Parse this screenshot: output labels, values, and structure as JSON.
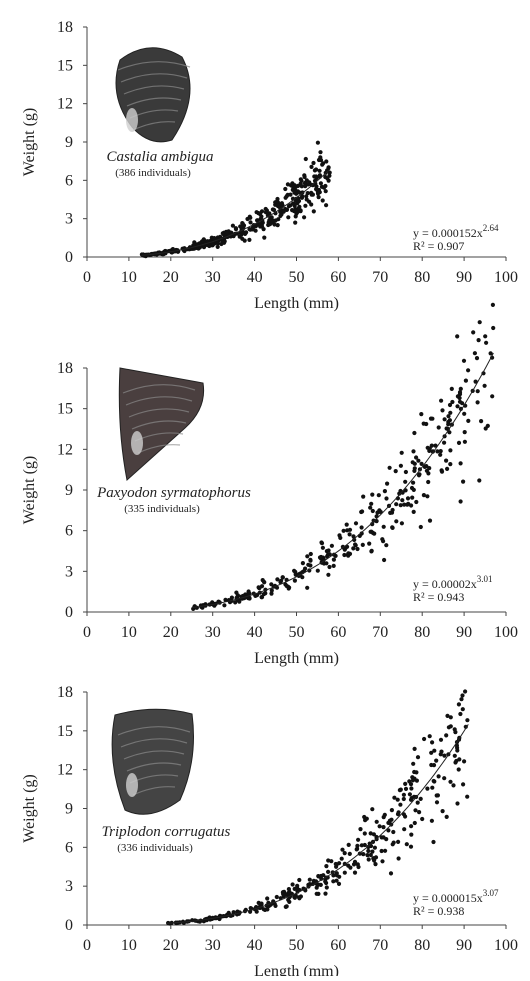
{
  "chart_data": [
    {
      "type": "scatter",
      "species": "Castalia ambigua",
      "count_label": "(386 individuals)",
      "xlabel": "Length (mm)",
      "ylabel": "Weight (g)",
      "xlim": [
        0,
        100
      ],
      "ylim": [
        0,
        18
      ],
      "xticks": [
        "0",
        "10",
        "20",
        "30",
        "40",
        "50",
        "60",
        "70",
        "80",
        "90",
        "100"
      ],
      "yticks": [
        "0",
        "3",
        "6",
        "9",
        "12",
        "15",
        "18"
      ],
      "fit": {
        "a": 0.000152,
        "b": 2.64,
        "x_range": [
          13,
          58
        ]
      },
      "equation": {
        "base": "y = 0.000152x",
        "exponent": "2.64",
        "r2": "R² = 0.907"
      },
      "x_range": [
        13,
        58
      ],
      "n_points": 386,
      "grid": false,
      "shell_color": "#3a3a3a"
    },
    {
      "type": "scatter",
      "species": "Paxyodon syrmatophorus",
      "count_label": "(335 individuals)",
      "xlabel": "Length (mm)",
      "ylabel": "Weight (g)",
      "xlim": [
        0,
        100
      ],
      "ylim": [
        0,
        18
      ],
      "xticks": [
        "0",
        "10",
        "20",
        "30",
        "40",
        "50",
        "60",
        "70",
        "80",
        "90",
        "100"
      ],
      "yticks": [
        "0",
        "3",
        "6",
        "9",
        "12",
        "15",
        "18"
      ],
      "fit": {
        "a": 2e-05,
        "b": 3.01,
        "x_range": [
          25,
          97
        ]
      },
      "equation": {
        "base": "y = 0.00002x",
        "exponent": "3.01",
        "r2": "R² = 0.943"
      },
      "x_range": [
        25,
        97
      ],
      "n_points": 335,
      "grid": false,
      "shell_color": "#4a3f3f"
    },
    {
      "type": "scatter",
      "species": "Triplodon corrugatus",
      "count_label": "(336 individuals)",
      "xlabel": "Length (mm)",
      "ylabel": "Weight (g)",
      "xlim": [
        0,
        100
      ],
      "ylim": [
        0,
        18
      ],
      "xticks": [
        "0",
        "10",
        "20",
        "30",
        "40",
        "50",
        "60",
        "70",
        "80",
        "90",
        "100"
      ],
      "yticks": [
        "0",
        "3",
        "6",
        "9",
        "12",
        "15",
        "18"
      ],
      "fit": {
        "a": 1.5e-05,
        "b": 3.07,
        "x_range": [
          19,
          91
        ]
      },
      "equation": {
        "base": "y = 0.000015x",
        "exponent": "3.07",
        "r2": "R² = 0.938"
      },
      "x_range": [
        19,
        91
      ],
      "n_points": 336,
      "grid": false,
      "shell_color": "#444444"
    }
  ]
}
